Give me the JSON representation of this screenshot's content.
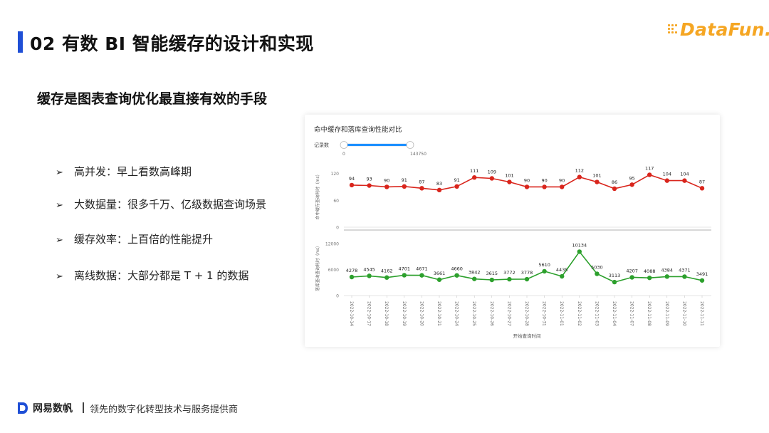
{
  "slide": {
    "title": "02 有数 BI 智能缓存的设计和实现",
    "subtitle": "缓存是图表查询优化最直接有效的手段",
    "logo_text": "DataFun.",
    "bullets": [
      {
        "label": "高并发：早上看数高峰期"
      },
      {
        "label": "大数据量：很多千万、亿级数据查询场景"
      },
      {
        "label": "缓存效率：上百倍的性能提升"
      },
      {
        "label": "离线数据：大部分都是  T + 1 的数据"
      }
    ],
    "footer": {
      "brand": "网易数帆",
      "slogan": "领先的数字化转型技术与服务提供商"
    }
  },
  "colors": {
    "accent": "#1f4fd6",
    "logo": "#f5a623",
    "series_cache": "#d9251c",
    "series_db": "#2ca02c",
    "slider": "#1e90ff"
  },
  "chart_data": {
    "type": "line",
    "title": "命中缓存和落库查询性能对比",
    "slider": {
      "label": "记录数",
      "min": "0",
      "max": "143750"
    },
    "xlabel": "开始查询时间",
    "categories": [
      "2022-10-14",
      "2022-10-17",
      "2022-10-18",
      "2022-10-19",
      "2022-10-20",
      "2022-10-21",
      "2022-10-24",
      "2022-10-25",
      "2022-10-26",
      "2022-10-27",
      "2022-10-28",
      "2022-10-31",
      "2022-11-01",
      "2022-11-02",
      "2022-11-03",
      "2022-11-04",
      "2022-11-07",
      "2022-11-08",
      "2022-11-09",
      "2022-11-10",
      "2022-11-11"
    ],
    "panels": [
      {
        "ylabel": "命中缓存查询耗时（ms）",
        "yticks": [
          0,
          60,
          120
        ],
        "ylim": [
          0,
          140
        ],
        "color": "#d9251c",
        "values": [
          94,
          93,
          90,
          91,
          87,
          83,
          91,
          111,
          109,
          101,
          90,
          90,
          90,
          112,
          101,
          86,
          95,
          117,
          104,
          104,
          87
        ]
      },
      {
        "ylabel": "落库查询查询耗时（ms）",
        "yticks": [
          0,
          6000,
          12000
        ],
        "ylim": [
          0,
          13000
        ],
        "color": "#2ca02c",
        "values": [
          4278,
          4545,
          4162,
          4701,
          4671,
          3661,
          4660,
          3842,
          3615,
          3772,
          3778,
          5610,
          4435,
          10134,
          5030,
          3113,
          4207,
          4088,
          4384,
          4371,
          3491
        ]
      }
    ]
  }
}
